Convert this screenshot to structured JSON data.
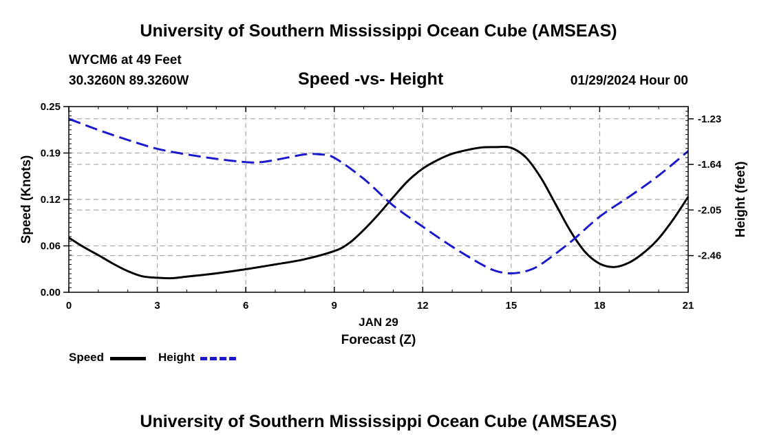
{
  "header": {
    "title": "University of Southern Mississippi Ocean Cube (AMSEAS)",
    "station": "WYCM6 at 49 Feet",
    "coords": "30.3260N  89.3260W",
    "subtitle": "Speed -vs- Height",
    "datetime": "01/29/2024 Hour 00"
  },
  "footer": {
    "title": "University of Southern Mississippi Ocean Cube (AMSEAS)"
  },
  "legend": {
    "speed_label": "Speed",
    "height_label": "Height"
  },
  "colors": {
    "speed": "#000000",
    "height": "#1a1acc",
    "grid": "#a9a9a9"
  },
  "chart_data": {
    "type": "line",
    "title": "Speed -vs- Height",
    "xlabel": "Forecast (Z)",
    "xsublabel": "JAN 29",
    "ylabel": "Speed (Knots)",
    "y2label": "Height (feet)",
    "xlim": [
      0,
      21
    ],
    "ylim": [
      0,
      0.25
    ],
    "y2lim": [
      -2.79,
      -1.12
    ],
    "x_ticks": [
      0,
      3,
      6,
      9,
      12,
      15,
      18,
      21
    ],
    "x_tick_labels": [
      "0",
      "3",
      "6",
      "9",
      "12",
      "15",
      "18",
      "21"
    ],
    "y_ticks": [
      0,
      0.0625,
      0.125,
      0.1875,
      0.25
    ],
    "y_tick_labels": [
      "0.00",
      "0.06",
      "0.12",
      "0.19",
      "0.25"
    ],
    "y2_ticks": [
      -1.23,
      -1.64,
      -2.05,
      -2.46
    ],
    "y2_tick_labels": [
      "-1.23",
      "-1.64",
      "-2.05",
      "-2.46"
    ],
    "series": [
      {
        "name": "Speed",
        "axis": "left",
        "style": "solid",
        "x": [
          0,
          0.5,
          1,
          1.5,
          2,
          2.5,
          3,
          3.5,
          4,
          5,
          6,
          7,
          8,
          9,
          9.5,
          10,
          10.5,
          11,
          11.5,
          12,
          12.5,
          13,
          13.5,
          14,
          14.5,
          15,
          15.5,
          16,
          16.5,
          17,
          17.5,
          18,
          18.5,
          19,
          19.5,
          20,
          20.5,
          21
        ],
        "values": [
          0.0735,
          0.061,
          0.05,
          0.0385,
          0.0285,
          0.0215,
          0.0195,
          0.019,
          0.021,
          0.0255,
          0.031,
          0.0375,
          0.0445,
          0.0555,
          0.066,
          0.084,
          0.105,
          0.128,
          0.15,
          0.1665,
          0.178,
          0.1865,
          0.1915,
          0.195,
          0.1955,
          0.1945,
          0.1815,
          0.1545,
          0.119,
          0.083,
          0.0545,
          0.0385,
          0.034,
          0.04,
          0.0535,
          0.0725,
          0.0985,
          0.1285
        ]
      },
      {
        "name": "Height",
        "axis": "right",
        "style": "dashed",
        "x": [
          0,
          1,
          2,
          3,
          4,
          5,
          6,
          6.5,
          7,
          8,
          8.5,
          9,
          10,
          11,
          12,
          13,
          14,
          14.5,
          15,
          15.5,
          16,
          17,
          18,
          19,
          20,
          21
        ],
        "values": [
          -1.23,
          -1.33,
          -1.42,
          -1.5,
          -1.55,
          -1.59,
          -1.62,
          -1.62,
          -1.6,
          -1.55,
          -1.55,
          -1.58,
          -1.77,
          -2.01,
          -2.2,
          -2.38,
          -2.54,
          -2.6,
          -2.62,
          -2.6,
          -2.54,
          -2.34,
          -2.11,
          -1.93,
          -1.74,
          -1.52
        ]
      }
    ]
  }
}
